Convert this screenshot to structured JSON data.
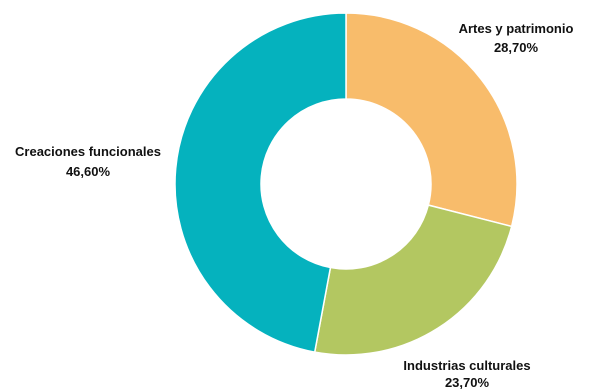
{
  "chart_data": {
    "type": "pie",
    "donut": true,
    "title": "",
    "legend": "none",
    "categories": [
      "Artes y patrimonio",
      "Industrias culturales",
      "Creaciones funcionales"
    ],
    "values": [
      28.7,
      23.7,
      46.6
    ],
    "value_labels": [
      "28,70%",
      "23,70%",
      "46,60%"
    ],
    "colors": [
      "#F8BC6B",
      "#B3C761",
      "#05B2BE"
    ]
  }
}
